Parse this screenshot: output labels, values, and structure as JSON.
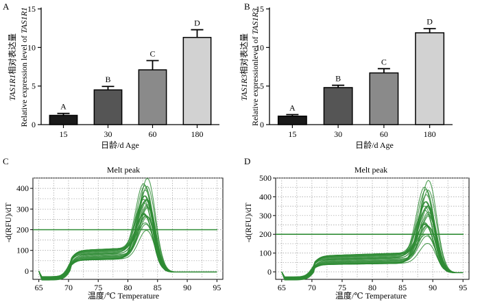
{
  "panels": [
    {
      "letter": "A",
      "kind": "bar",
      "ylabel_cn_italic": "TAS1R1",
      "ylabel_cn_rest": "相对表达量",
      "ylabel_en_prefix": "Relative expression level of ",
      "ylabel_en_italic": "TAS1R1",
      "xlabel": "日龄/d Age"
    },
    {
      "letter": "B",
      "kind": "bar",
      "ylabel_cn_italic": "TAS1R3",
      "ylabel_cn_rest": "相对表达量",
      "ylabel_en_prefix": "Relative expressionlevel of ",
      "ylabel_en_italic": "TAS1R3",
      "xlabel": "日龄/d Age"
    },
    {
      "letter": "C",
      "kind": "melt",
      "title": "Melt peak",
      "ylabel": "-d(RFU)/dT",
      "xlabel": "温度/℃ Temperature"
    },
    {
      "letter": "D",
      "kind": "melt",
      "title": "Melt peak",
      "ylabel": "-d(RFU)/dT",
      "xlabel": "温度/℃ Temperature"
    }
  ],
  "chart_data": [
    {
      "type": "bar",
      "panel": "A",
      "categories": [
        "15",
        "30",
        "60",
        "180"
      ],
      "values": [
        1.2,
        4.5,
        7.1,
        11.3
      ],
      "errors": [
        0.25,
        0.45,
        1.2,
        1.0
      ],
      "letters": [
        "A",
        "B",
        "C",
        "D"
      ],
      "colors": [
        "#1a1a1a",
        "#555555",
        "#8a8a8a",
        "#d2d2d2"
      ],
      "xlabel": "日龄/d Age",
      "ylim": [
        0,
        15
      ],
      "yticks": [
        0,
        5,
        10,
        15
      ]
    },
    {
      "type": "bar",
      "panel": "B",
      "categories": [
        "15",
        "30",
        "60",
        "180"
      ],
      "values": [
        1.1,
        4.8,
        6.7,
        11.9
      ],
      "errors": [
        0.2,
        0.3,
        0.55,
        0.55
      ],
      "letters": [
        "A",
        "B",
        "C",
        "D"
      ],
      "colors": [
        "#1a1a1a",
        "#555555",
        "#8a8a8a",
        "#d2d2d2"
      ],
      "xlabel": "日龄/d Age",
      "ylim": [
        0,
        15
      ],
      "yticks": [
        0,
        5,
        10,
        15
      ]
    },
    {
      "type": "line",
      "panel": "C",
      "title": "Melt peak",
      "xlabel": "温度/℃ Temperature",
      "ylabel": "-d(RFU)/dT",
      "xlim": [
        64,
        96
      ],
      "xticks": [
        65,
        70,
        75,
        80,
        85,
        90,
        95
      ],
      "ylim": [
        -40,
        450
      ],
      "yticks": [
        0,
        100,
        200,
        300,
        400
      ],
      "threshold": 200,
      "curve_count": 26,
      "peak_temperature": 83,
      "peak_range": [
        170,
        440
      ],
      "plateau_range": [
        55,
        105
      ],
      "line_color": "#2e8b34"
    },
    {
      "type": "line",
      "panel": "D",
      "title": "Melt peak",
      "xlabel": "温度/℃ Temperature",
      "ylabel": "-d(RFU)/dT",
      "xlim": [
        64,
        96
      ],
      "xticks": [
        65,
        70,
        75,
        80,
        85,
        90,
        95
      ],
      "ylim": [
        -40,
        500
      ],
      "yticks": [
        0,
        100,
        200,
        300,
        400,
        500
      ],
      "threshold": 200,
      "curve_count": 26,
      "peak_temperature": 89,
      "peak_range": [
        120,
        480
      ],
      "plateau_range": [
        40,
        90
      ],
      "line_color": "#2e8b34"
    }
  ]
}
